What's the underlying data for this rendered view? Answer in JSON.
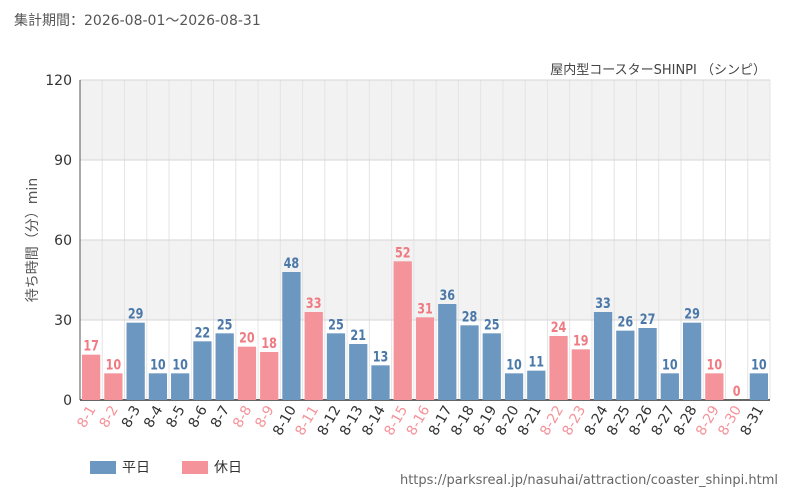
{
  "header": {
    "period_label": "集計期間：2026-08-01～2026-08-31",
    "attraction_name": "屋内型コースターSHINPI （シンピ）"
  },
  "footer": {
    "source_url": "https://parksreal.jp/nasuhai/attraction/coaster_shinpi.html"
  },
  "colors": {
    "weekday": "#6b97c0",
    "holiday": "#f5939a",
    "holiday_text": "#f07a82",
    "weekday_text": "#4a78a8"
  },
  "chart_data": {
    "type": "bar",
    "ylabel": "待ち時間（分）min",
    "ylim": [
      0,
      120
    ],
    "yticks": [
      0,
      30,
      60,
      90,
      120
    ],
    "grid": true,
    "legend": "bottom-left",
    "series": [
      {
        "name": "平日",
        "key": "weekday"
      },
      {
        "name": "休日",
        "key": "holiday"
      }
    ],
    "categories": [
      "8-1",
      "8-2",
      "8-3",
      "8-4",
      "8-5",
      "8-6",
      "8-7",
      "8-8",
      "8-9",
      "8-10",
      "8-11",
      "8-12",
      "8-13",
      "8-14",
      "8-15",
      "8-16",
      "8-17",
      "8-18",
      "8-19",
      "8-20",
      "8-21",
      "8-22",
      "8-23",
      "8-24",
      "8-25",
      "8-26",
      "8-27",
      "8-28",
      "8-29",
      "8-30",
      "8-31"
    ],
    "values": [
      17,
      10,
      29,
      10,
      10,
      22,
      25,
      20,
      18,
      48,
      33,
      25,
      21,
      13,
      52,
      31,
      36,
      28,
      25,
      10,
      11,
      24,
      19,
      33,
      26,
      27,
      10,
      29,
      10,
      0,
      10
    ],
    "day_type": [
      "holiday",
      "holiday",
      "weekday",
      "weekday",
      "weekday",
      "weekday",
      "weekday",
      "holiday",
      "holiday",
      "weekday",
      "holiday",
      "weekday",
      "weekday",
      "weekday",
      "holiday",
      "holiday",
      "weekday",
      "weekday",
      "weekday",
      "weekday",
      "weekday",
      "holiday",
      "holiday",
      "weekday",
      "weekday",
      "weekday",
      "weekday",
      "weekday",
      "holiday",
      "holiday",
      "weekday"
    ]
  }
}
